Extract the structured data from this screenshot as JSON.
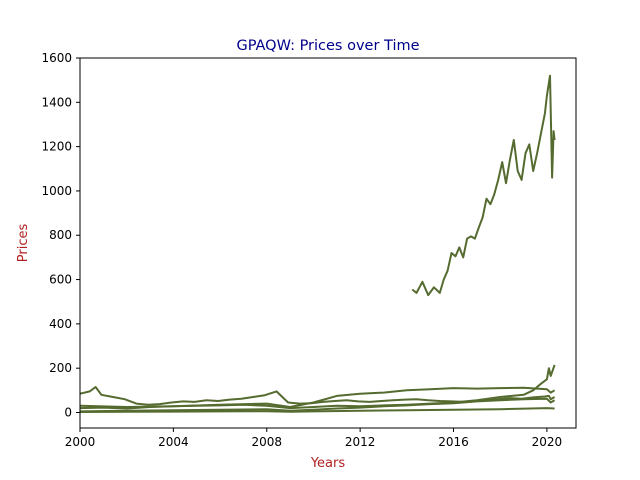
{
  "chart_data": {
    "type": "line",
    "title": "GPAQW: Prices over Time",
    "xlabel": "Years",
    "ylabel": "Prices",
    "xlim": [
      "2000-01-01",
      "2021-04-01"
    ],
    "ylim": [
      -70,
      1600
    ],
    "x_ticks": [
      "2000",
      "2004",
      "2008",
      "2012",
      "2016",
      "2020"
    ],
    "y_ticks": [
      0,
      200,
      400,
      600,
      800,
      1000,
      1200,
      1400,
      1600
    ],
    "grid": false,
    "colors": {
      "line": "#556b2f",
      "title": "#00008b",
      "axis_label": "#b22222",
      "axis": "#000000"
    },
    "series": [
      {
        "x": [
          "2014-03-27",
          "2014-06",
          "2014-09",
          "2014-12",
          "2015-03",
          "2015-06",
          "2015-08",
          "2015-10",
          "2015-12",
          "2016-02",
          "2016-04",
          "2016-06",
          "2016-08",
          "2016-10",
          "2016-12",
          "2017-02",
          "2017-04",
          "2017-06",
          "2017-08",
          "2017-10",
          "2017-12",
          "2018-02",
          "2018-04",
          "2018-06",
          "2018-08",
          "2018-10",
          "2018-12",
          "2019-02",
          "2019-04",
          "2019-06",
          "2019-08",
          "2019-10",
          "2019-12",
          "2020-01",
          "2020-02-19",
          "2020-03-23",
          "2020-04-15",
          "2020-05-01"
        ],
        "values": [
          555,
          540,
          590,
          530,
          565,
          540,
          600,
          640,
          720,
          705,
          745,
          700,
          785,
          795,
          785,
          835,
          880,
          965,
          940,
          985,
          1050,
          1130,
          1035,
          1140,
          1230,
          1090,
          1050,
          1170,
          1210,
          1090,
          1170,
          1260,
          1350,
          1430,
          1520,
          1060,
          1270,
          1230
        ]
      },
      {
        "x": [
          "2000-01",
          "2000-06",
          "2000-09",
          "2000-12",
          "2001-06",
          "2001-12",
          "2002-06",
          "2002-12",
          "2003-06",
          "2003-12",
          "2004-06",
          "2004-12",
          "2005-06",
          "2005-12",
          "2006-06",
          "2006-12",
          "2007-06",
          "2007-12",
          "2008-06",
          "2008-12",
          "2009-06",
          "2009-12",
          "2010-06",
          "2010-12",
          "2011-06",
          "2011-12",
          "2012-06",
          "2012-12",
          "2013-06",
          "2013-12",
          "2014-06",
          "2014-12",
          "2015-06",
          "2015-12",
          "2016-06",
          "2016-12",
          "2017-06",
          "2017-12",
          "2018-06",
          "2018-12",
          "2019-06",
          "2019-12",
          "2020-02",
          "2020-03",
          "2020-05"
        ],
        "values": [
          85,
          95,
          115,
          80,
          70,
          60,
          40,
          35,
          38,
          45,
          50,
          48,
          55,
          52,
          58,
          62,
          70,
          78,
          95,
          45,
          40,
          42,
          48,
          52,
          55,
          50,
          48,
          52,
          55,
          58,
          60,
          55,
          52,
          50,
          48,
          52,
          55,
          60,
          65,
          62,
          68,
          72,
          75,
          60,
          70
        ]
      },
      {
        "x": [
          "2000-01",
          "2001-01",
          "2002-01",
          "2003-01",
          "2004-01",
          "2005-01",
          "2006-01",
          "2007-01",
          "2008-01",
          "2009-01",
          "2010-01",
          "2011-01",
          "2012-01",
          "2013-01",
          "2014-01",
          "2015-01",
          "2016-01",
          "2017-01",
          "2018-01",
          "2019-01",
          "2019-06",
          "2019-10",
          "2020-01",
          "2020-02",
          "2020-03",
          "2020-05"
        ],
        "values": [
          20,
          22,
          18,
          25,
          28,
          30,
          32,
          35,
          30,
          20,
          25,
          30,
          28,
          32,
          35,
          40,
          45,
          55,
          70,
          80,
          100,
          130,
          150,
          200,
          165,
          215
        ]
      },
      {
        "x": [
          "2000-01",
          "2002-01",
          "2004-01",
          "2006-01",
          "2008-01",
          "2009-01",
          "2010-01",
          "2011-01",
          "2012-01",
          "2013-01",
          "2014-01",
          "2015-01",
          "2016-01",
          "2017-01",
          "2018-01",
          "2019-01",
          "2020-01",
          "2020-03",
          "2020-05"
        ],
        "values": [
          30,
          25,
          28,
          35,
          40,
          25,
          45,
          75,
          85,
          90,
          100,
          105,
          110,
          108,
          110,
          112,
          105,
          90,
          100
        ]
      },
      {
        "x": [
          "2000-01",
          "2002-01",
          "2004-01",
          "2006-01",
          "2008-01",
          "2009-01",
          "2010-01",
          "2011-01",
          "2012-01",
          "2013-01",
          "2014-01",
          "2015-01",
          "2016-01",
          "2017-01",
          "2018-01",
          "2019-01",
          "2020-01",
          "2020-03",
          "2020-05"
        ],
        "values": [
          5,
          8,
          10,
          12,
          15,
          8,
          12,
          18,
          22,
          28,
          32,
          38,
          42,
          50,
          55,
          60,
          62,
          45,
          55
        ]
      },
      {
        "x": [
          "2000-01",
          "2002-01",
          "2004-01",
          "2006-01",
          "2008-01",
          "2009-01",
          "2010-01",
          "2012-01",
          "2014-01",
          "2016-01",
          "2018-01",
          "2020-01",
          "2020-05"
        ],
        "values": [
          2,
          3,
          4,
          5,
          6,
          3,
          5,
          8,
          10,
          12,
          15,
          20,
          18
        ]
      }
    ]
  }
}
